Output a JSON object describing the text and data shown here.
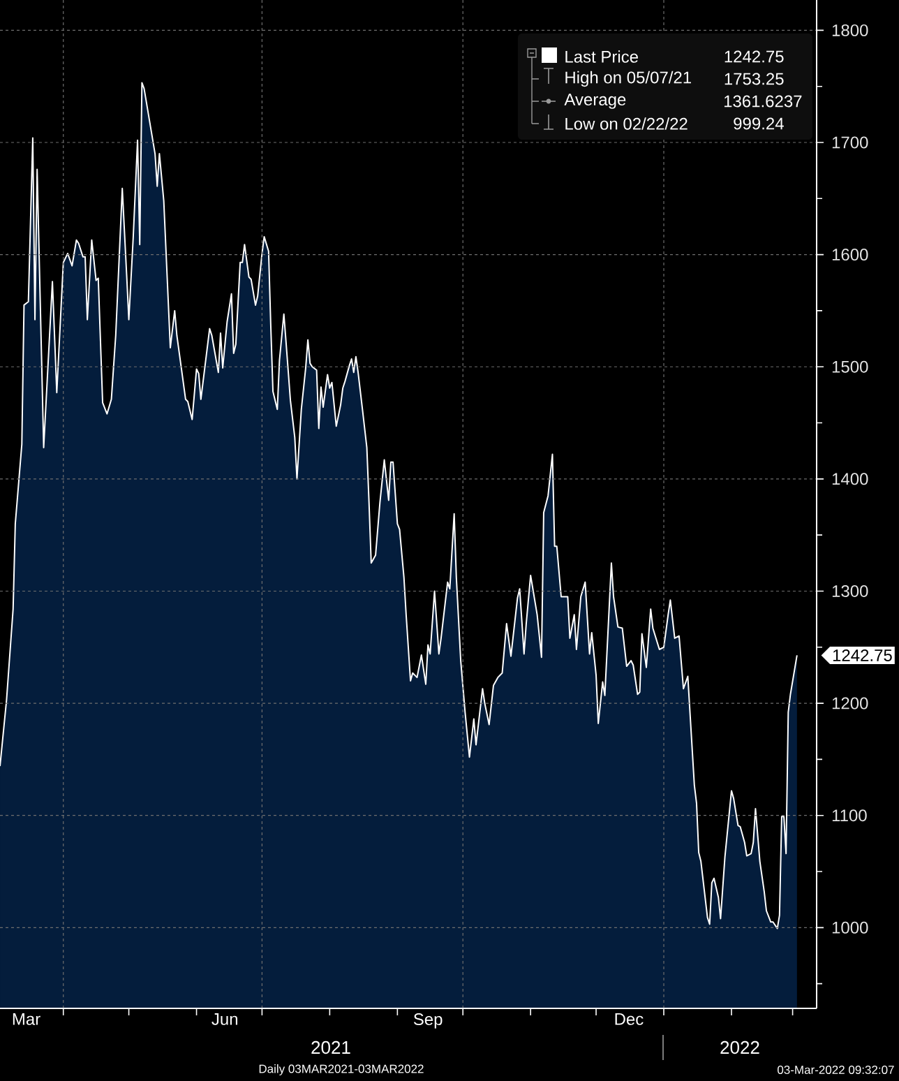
{
  "chart_data": {
    "type": "area",
    "x": [
      "2021-03-03",
      "2021-03-06",
      "2021-03-09",
      "2021-03-10",
      "2021-03-13",
      "2021-03-14",
      "2021-03-16",
      "2021-03-18",
      "2021-03-19",
      "2021-03-20",
      "2021-03-23",
      "2021-03-27",
      "2021-03-29",
      "2021-04-01",
      "2021-04-03",
      "2021-04-05",
      "2021-04-07",
      "2021-04-08",
      "2021-04-10",
      "2021-04-11",
      "2021-04-12",
      "2021-04-14",
      "2021-04-16",
      "2021-04-17",
      "2021-04-19",
      "2021-04-21",
      "2021-04-23",
      "2021-04-25",
      "2021-04-28",
      "2021-04-30",
      "2021-05-01",
      "2021-05-03",
      "2021-05-05",
      "2021-05-06",
      "2021-05-07",
      "2021-05-08",
      "2021-05-13",
      "2021-05-14",
      "2021-05-15",
      "2021-05-17",
      "2021-05-20",
      "2021-05-22",
      "2021-05-23",
      "2021-05-27",
      "2021-05-28",
      "2021-05-30",
      "2021-06-01",
      "2021-06-02",
      "2021-06-03",
      "2021-06-07",
      "2021-06-08",
      "2021-06-11",
      "2021-06-12",
      "2021-06-13",
      "2021-06-15",
      "2021-06-17",
      "2021-06-18",
      "2021-06-19",
      "2021-06-21",
      "2021-06-22",
      "2021-06-23",
      "2021-06-25",
      "2021-06-26",
      "2021-06-28",
      "2021-06-29",
      "2021-07-01",
      "2021-07-02",
      "2021-07-04",
      "2021-07-05",
      "2021-07-06",
      "2021-07-08",
      "2021-07-09",
      "2021-07-11",
      "2021-07-12",
      "2021-07-14",
      "2021-07-16",
      "2021-07-17",
      "2021-07-19",
      "2021-07-21",
      "2021-07-22",
      "2021-07-23",
      "2021-07-24",
      "2021-07-26",
      "2021-07-27",
      "2021-07-28",
      "2021-07-29",
      "2021-07-31",
      "2021-08-01",
      "2021-08-02",
      "2021-08-04",
      "2021-08-06",
      "2021-08-07",
      "2021-08-08",
      "2021-08-10",
      "2021-08-11",
      "2021-08-12",
      "2021-08-13",
      "2021-08-14",
      "2021-08-16",
      "2021-08-18",
      "2021-08-19",
      "2021-08-20",
      "2021-08-22",
      "2021-08-24",
      "2021-08-26",
      "2021-08-28",
      "2021-08-29",
      "2021-08-30",
      "2021-09-01",
      "2021-09-02",
      "2021-09-04",
      "2021-09-05",
      "2021-09-07",
      "2021-09-08",
      "2021-09-10",
      "2021-09-12",
      "2021-09-14",
      "2021-09-15",
      "2021-09-16",
      "2021-09-18",
      "2021-09-20",
      "2021-09-21",
      "2021-09-24",
      "2021-09-25",
      "2021-09-27",
      "2021-09-28",
      "2021-09-30",
      "2021-10-02",
      "2021-10-04",
      "2021-10-06",
      "2021-10-07",
      "2021-10-10",
      "2021-10-11",
      "2021-10-13",
      "2021-10-15",
      "2021-10-17",
      "2021-10-19",
      "2021-10-21",
      "2021-10-23",
      "2021-10-26",
      "2021-10-27",
      "2021-10-29",
      "2021-10-30",
      "2021-11-01",
      "2021-11-04",
      "2021-11-06",
      "2021-11-07",
      "2021-11-09",
      "2021-11-11",
      "2021-11-12",
      "2021-11-13",
      "2021-11-15",
      "2021-11-18",
      "2021-11-19",
      "2021-11-21",
      "2021-11-22",
      "2021-11-24",
      "2021-11-26",
      "2021-11-28",
      "2021-11-29",
      "2021-12-01",
      "2021-12-02",
      "2021-12-04",
      "2021-12-05",
      "2021-12-08",
      "2021-12-09",
      "2021-12-11",
      "2021-12-13",
      "2021-12-15",
      "2021-12-17",
      "2021-12-18",
      "2021-12-20",
      "2021-12-21",
      "2021-12-22",
      "2021-12-24",
      "2021-12-26",
      "2021-12-27",
      "2021-12-30",
      "2022-01-01",
      "2022-01-03",
      "2022-01-04",
      "2022-01-06",
      "2022-01-08",
      "2022-01-10",
      "2022-01-12",
      "2022-01-15",
      "2022-01-16",
      "2022-01-17",
      "2022-01-18",
      "2022-01-21",
      "2022-01-22",
      "2022-01-23",
      "2022-01-24",
      "2022-01-26",
      "2022-01-27",
      "2022-01-29",
      "2022-02-01",
      "2022-02-02",
      "2022-02-04",
      "2022-02-05",
      "2022-02-07",
      "2022-02-08",
      "2022-02-10",
      "2022-02-11",
      "2022-02-12",
      "2022-02-14",
      "2022-02-16",
      "2022-02-17",
      "2022-02-19",
      "2022-02-20",
      "2022-02-22",
      "2022-02-23",
      "2022-02-24",
      "2022-02-25",
      "2022-02-26",
      "2022-02-27",
      "2022-02-28",
      "2022-03-03"
    ],
    "series": [
      {
        "name": "Last Price",
        "color": "#ffffff",
        "values": [
          1144,
          1203,
          1284,
          1360,
          1431,
          1555,
          1558,
          1704,
          1542,
          1676,
          1428,
          1576,
          1477,
          1593,
          1601,
          1590,
          1613,
          1610,
          1598,
          1598,
          1542,
          1613,
          1577,
          1579,
          1468,
          1458,
          1471,
          1528,
          1659,
          1582,
          1542,
          1615,
          1702,
          1609,
          1753.25,
          1748,
          1690,
          1661,
          1690,
          1648,
          1517,
          1550,
          1528,
          1471,
          1469,
          1453,
          1498,
          1494,
          1471,
          1534,
          1528,
          1495,
          1530,
          1499,
          1540,
          1565,
          1512,
          1520,
          1593,
          1593,
          1609,
          1580,
          1578,
          1555,
          1563,
          1601,
          1616,
          1603,
          1537,
          1478,
          1462,
          1506,
          1547,
          1522,
          1470,
          1437,
          1400,
          1462,
          1499,
          1524,
          1503,
          1500,
          1497,
          1445,
          1482,
          1464,
          1493,
          1481,
          1486,
          1447,
          1466,
          1481,
          1487,
          1501,
          1507,
          1495,
          1509,
          1495,
          1462,
          1428,
          1379,
          1325,
          1332,
          1379,
          1417,
          1381,
          1415,
          1415,
          1360,
          1355,
          1312,
          1279,
          1220,
          1227,
          1223,
          1243,
          1217,
          1252,
          1244,
          1300,
          1244,
          1258,
          1308,
          1302,
          1369,
          1312,
          1238,
          1192,
          1152,
          1186,
          1163,
          1213,
          1200,
          1181,
          1216,
          1223,
          1227,
          1271,
          1242,
          1294,
          1302,
          1244,
          1271,
          1314,
          1279,
          1241,
          1370,
          1385,
          1422,
          1340,
          1340,
          1295,
          1295,
          1258,
          1279,
          1248,
          1295,
          1308,
          1244,
          1263,
          1225,
          1182,
          1219,
          1207,
          1325,
          1295,
          1268,
          1267,
          1233,
          1238,
          1234,
          1208,
          1210,
          1262,
          1232,
          1284,
          1267,
          1248,
          1250,
          1279,
          1292,
          1258,
          1260,
          1213,
          1224,
          1127,
          1111,
          1067,
          1059,
          1009,
          1003,
          1040,
          1044,
          1027,
          1008,
          1063,
          1122,
          1115,
          1091,
          1090,
          1076,
          1064,
          1066,
          1076,
          1106,
          1059,
          1032,
          1015,
          1005,
          1005,
          999.24,
          1011,
          1099,
          1099,
          1066,
          1192,
          1208,
          1242.75
        ]
      }
    ],
    "xlim": [
      "2021-03-03",
      "2022-03-12"
    ],
    "xticks": [
      {
        "value": "2021-03-15",
        "label": "Mar"
      },
      {
        "value": "2021-04-01",
        "label": null
      },
      {
        "value": "2021-05-01",
        "label": null
      },
      {
        "value": "2021-06-01",
        "label": null
      },
      {
        "value": "2021-06-14",
        "label": "Jun"
      },
      {
        "value": "2021-07-01",
        "label": null
      },
      {
        "value": "2021-08-01",
        "label": null
      },
      {
        "value": "2021-09-01",
        "label": null
      },
      {
        "value": "2021-09-15",
        "label": "Sep"
      },
      {
        "value": "2021-10-01",
        "label": null
      },
      {
        "value": "2021-11-01",
        "label": null
      },
      {
        "value": "2021-12-01",
        "label": null
      },
      {
        "value": "2021-12-16",
        "label": "Dec"
      },
      {
        "value": "2022-01-01",
        "label": null
      },
      {
        "value": "2022-02-01",
        "label": null
      },
      {
        "value": "2022-03-01",
        "label": null
      }
    ],
    "ylim": [
      928,
      1827
    ],
    "yticks": [
      {
        "value": 950,
        "label": null
      },
      1000,
      {
        "value": 1050,
        "label": null
      },
      1100,
      {
        "value": 1150,
        "label": null
      },
      1200,
      1242.75,
      {
        "value": 1250,
        "label": null
      },
      1300,
      {
        "value": 1350,
        "label": null
      },
      1400,
      {
        "value": 1450,
        "label": null
      },
      1500,
      {
        "value": 1550,
        "label": null
      },
      1600,
      {
        "value": 1650,
        "label": null
      },
      1700,
      {
        "value": 1750,
        "label": null
      },
      1800
    ],
    "grid": "y",
    "ref_lines": [
      {
        "axis": "x",
        "value": "2021-04-01",
        "color": "#6e6e6e",
        "line_style": "dashed"
      },
      {
        "axis": "x",
        "value": "2021-07-01",
        "color": "#6e6e6e",
        "line_style": "dashed"
      },
      {
        "axis": "x",
        "value": "2021-10-01",
        "color": "#6e6e6e",
        "line_style": "dashed"
      },
      {
        "axis": "x",
        "value": "2022-01-01",
        "color": "#6e6e6e",
        "line_style": "dashed"
      }
    ],
    "legend": "top right",
    "annotations": [
      "1242.75",
      "High on 05/07/21",
      "1753.25",
      "Average",
      "1361.6237",
      "Low on 02/22/22",
      "999.24",
      "2021",
      "2022",
      "Daily 03MAR2021-03MAR2022",
      "03-Mar-2022 09:32:07"
    ]
  }
}
